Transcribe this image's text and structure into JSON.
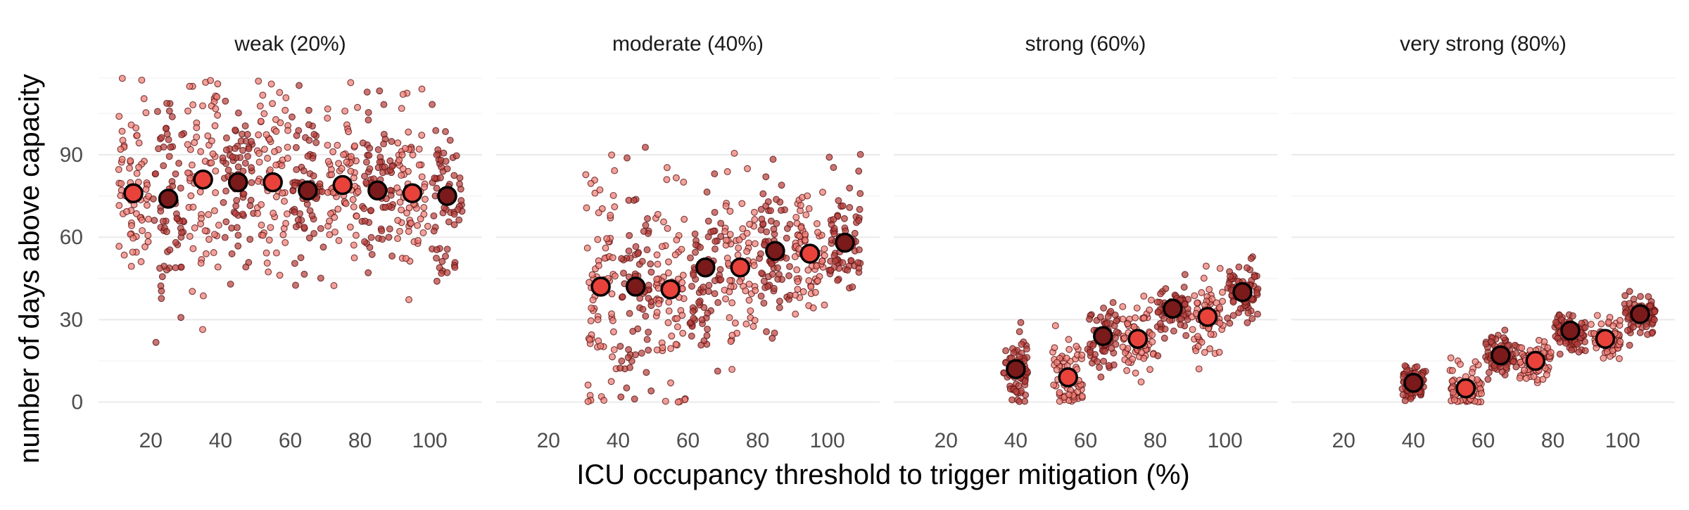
{
  "chart_data": {
    "type": "scatter",
    "layout": "faceted",
    "xlabel": "ICU occupancy threshold to trigger mitigation (%)",
    "ylabel": "number of days above capacity",
    "x_ticks": [
      20,
      40,
      60,
      80,
      100
    ],
    "y_ticks": [
      0,
      30,
      60,
      90
    ],
    "ylim": [
      -6,
      122
    ],
    "grid": true,
    "legend": "none",
    "colors": {
      "group_a_mean": "#e8423b",
      "group_b_mean": "#7a1a1a",
      "group_a_points": "#ee7d75",
      "group_b_points": "#b5403c",
      "point_outline": "#5a1212",
      "mean_outline": "#000000"
    },
    "panels": [
      {
        "title": "weak (20%)",
        "groups": [
          {
            "x": 15,
            "mean": 76,
            "sd": 18,
            "spread_x": 4.5,
            "color": "a"
          },
          {
            "x": 25,
            "mean": 74,
            "sd": 20,
            "spread_x": 4.5,
            "color": "b"
          },
          {
            "x": 35,
            "mean": 81,
            "sd": 20,
            "spread_x": 4.5,
            "color": "a"
          },
          {
            "x": 45,
            "mean": 80,
            "sd": 15,
            "spread_x": 4.5,
            "color": "b"
          },
          {
            "x": 55,
            "mean": 80,
            "sd": 18,
            "spread_x": 4.5,
            "color": "a"
          },
          {
            "x": 65,
            "mean": 77,
            "sd": 16,
            "spread_x": 4.5,
            "color": "b"
          },
          {
            "x": 75,
            "mean": 79,
            "sd": 16,
            "spread_x": 4.5,
            "color": "a"
          },
          {
            "x": 85,
            "mean": 77,
            "sd": 15,
            "spread_x": 4.5,
            "color": "b"
          },
          {
            "x": 95,
            "mean": 76,
            "sd": 16,
            "spread_x": 4.5,
            "color": "a"
          },
          {
            "x": 105,
            "mean": 75,
            "sd": 14,
            "spread_x": 4.5,
            "color": "b"
          }
        ]
      },
      {
        "title": "moderate (40%)",
        "groups": [
          {
            "x": 35,
            "mean": 42,
            "sd": 24,
            "spread_x": 4.5,
            "color": "a"
          },
          {
            "x": 45,
            "mean": 42,
            "sd": 24,
            "spread_x": 4.5,
            "color": "b"
          },
          {
            "x": 55,
            "mean": 41,
            "sd": 17,
            "spread_x": 4.5,
            "color": "a"
          },
          {
            "x": 65,
            "mean": 49,
            "sd": 16,
            "spread_x": 4.5,
            "color": "b"
          },
          {
            "x": 75,
            "mean": 49,
            "sd": 15,
            "spread_x": 4.5,
            "color": "a"
          },
          {
            "x": 85,
            "mean": 55,
            "sd": 13,
            "spread_x": 4.5,
            "color": "b"
          },
          {
            "x": 95,
            "mean": 54,
            "sd": 12,
            "spread_x": 4.5,
            "color": "a"
          },
          {
            "x": 105,
            "mean": 58,
            "sd": 10,
            "spread_x": 4.5,
            "color": "b"
          }
        ]
      },
      {
        "title": "strong (60%)",
        "groups": [
          {
            "x": 40,
            "mean": 12,
            "sd": 6,
            "spread_x": 3.5,
            "color": "b"
          },
          {
            "x": 55,
            "mean": 9,
            "sd": 7,
            "spread_x": 4.5,
            "color": "a"
          },
          {
            "x": 65,
            "mean": 24,
            "sd": 6,
            "spread_x": 4.5,
            "color": "b"
          },
          {
            "x": 75,
            "mean": 23,
            "sd": 7,
            "spread_x": 4.5,
            "color": "a"
          },
          {
            "x": 85,
            "mean": 34,
            "sd": 5,
            "spread_x": 4.5,
            "color": "b"
          },
          {
            "x": 95,
            "mean": 31,
            "sd": 7,
            "spread_x": 4.5,
            "color": "a"
          },
          {
            "x": 105,
            "mean": 40,
            "sd": 5,
            "spread_x": 4.5,
            "color": "b"
          }
        ]
      },
      {
        "title": "very strong (80%)",
        "groups": [
          {
            "x": 40,
            "mean": 7,
            "sd": 3.5,
            "spread_x": 3.5,
            "color": "b"
          },
          {
            "x": 55,
            "mean": 5,
            "sd": 4,
            "spread_x": 4.5,
            "color": "a"
          },
          {
            "x": 65,
            "mean": 17,
            "sd": 4,
            "spread_x": 4.5,
            "color": "b"
          },
          {
            "x": 75,
            "mean": 15,
            "sd": 4,
            "spread_x": 4.5,
            "color": "a"
          },
          {
            "x": 85,
            "mean": 26,
            "sd": 3.5,
            "spread_x": 4.5,
            "color": "b"
          },
          {
            "x": 95,
            "mean": 23,
            "sd": 3.5,
            "spread_x": 4.5,
            "color": "a"
          },
          {
            "x": 105,
            "mean": 32,
            "sd": 3.5,
            "spread_x": 4.5,
            "color": "b"
          }
        ]
      }
    ]
  }
}
